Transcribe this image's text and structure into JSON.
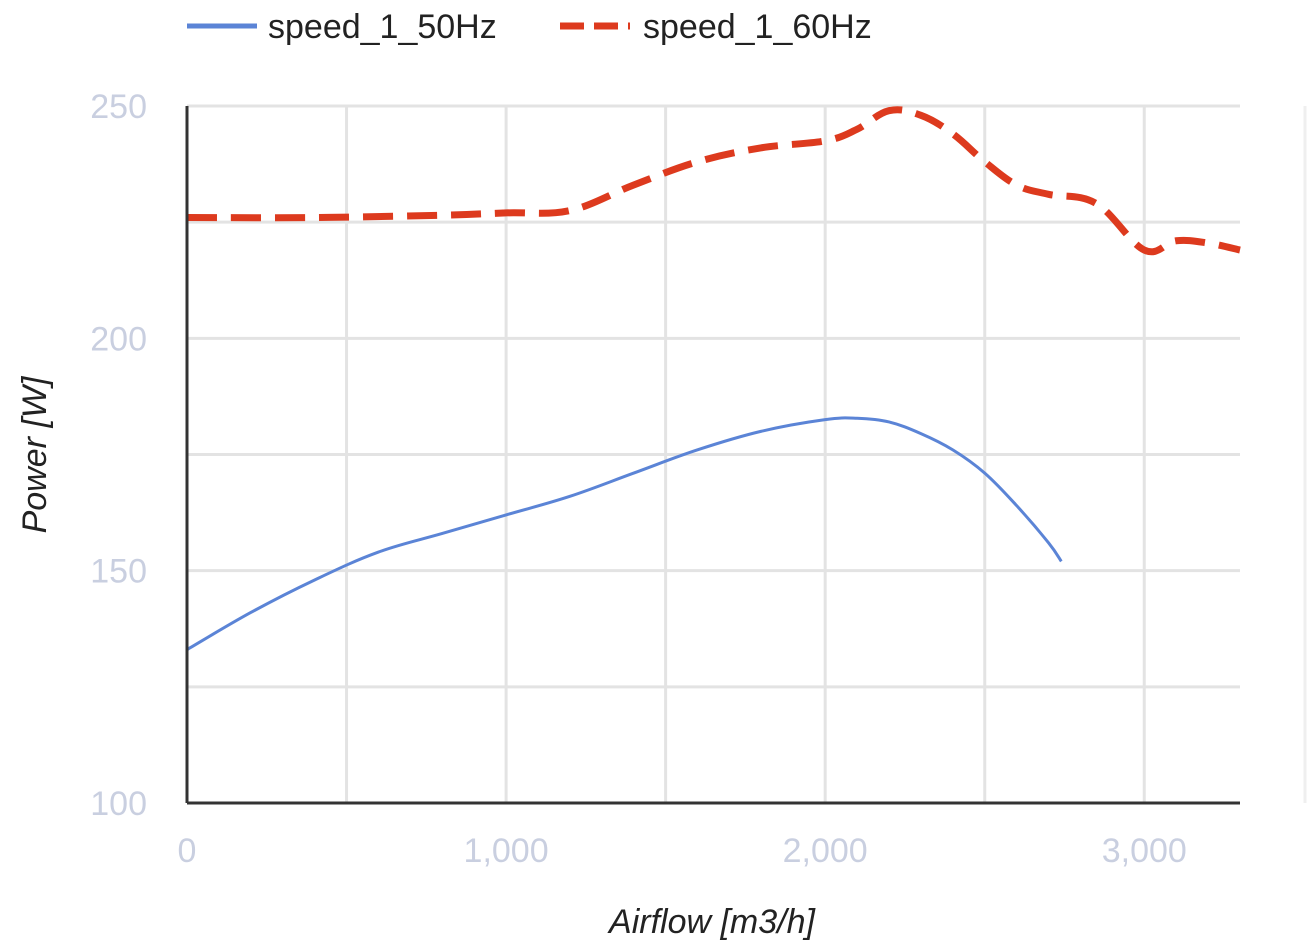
{
  "chart_data": {
    "type": "line",
    "xlabel": "Airflow [m3/h]",
    "ylabel": "Power [W]",
    "xlim": [
      0,
      3300
    ],
    "ylim": [
      100,
      250
    ],
    "x_ticks": [
      0,
      1000,
      2000,
      3000
    ],
    "x_tick_labels": [
      "0",
      "1,000",
      "2,000",
      "3,000"
    ],
    "y_ticks": [
      100,
      150,
      200,
      250
    ],
    "y_tick_labels": [
      "100",
      "150",
      "200",
      "250"
    ],
    "x_minor_gridlines": [
      500,
      1500,
      2500
    ],
    "y_minor_gridlines": [
      125,
      175,
      225
    ],
    "grid": true,
    "legend_position": "top-left",
    "series": [
      {
        "name": "speed_1_50Hz",
        "color": "#5b84d6",
        "line_style": "solid",
        "points": [
          [
            0,
            133
          ],
          [
            200,
            141
          ],
          [
            400,
            148
          ],
          [
            600,
            154
          ],
          [
            800,
            158
          ],
          [
            1000,
            162
          ],
          [
            1200,
            166
          ],
          [
            1400,
            171
          ],
          [
            1600,
            176
          ],
          [
            1800,
            180
          ],
          [
            2000,
            182.5
          ],
          [
            2100,
            182.8
          ],
          [
            2200,
            182
          ],
          [
            2300,
            179.5
          ],
          [
            2400,
            176
          ],
          [
            2500,
            171
          ],
          [
            2600,
            164
          ],
          [
            2700,
            156
          ],
          [
            2740,
            152
          ]
        ]
      },
      {
        "name": "speed_1_60Hz",
        "color": "#dd3a1e",
        "line_style": "dashed",
        "points": [
          [
            0,
            226
          ],
          [
            400,
            226
          ],
          [
            800,
            226.5
          ],
          [
            1000,
            227
          ],
          [
            1200,
            227.5
          ],
          [
            1400,
            233
          ],
          [
            1600,
            238
          ],
          [
            1800,
            241
          ],
          [
            2000,
            242.5
          ],
          [
            2100,
            245
          ],
          [
            2200,
            249
          ],
          [
            2300,
            248
          ],
          [
            2400,
            244
          ],
          [
            2500,
            238
          ],
          [
            2600,
            233
          ],
          [
            2700,
            231
          ],
          [
            2850,
            229
          ],
          [
            3000,
            219
          ],
          [
            3100,
            221
          ],
          [
            3200,
            220.5
          ],
          [
            3300,
            219
          ]
        ]
      }
    ]
  }
}
